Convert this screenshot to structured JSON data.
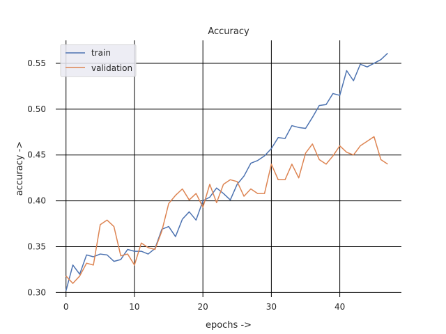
{
  "chart_data": {
    "type": "line",
    "title": "Accuracy",
    "xlabel": "epochs ->",
    "ylabel": "accuracy ->",
    "xlim": [
      -1.5,
      49
    ],
    "ylim": [
      0.295,
      0.575
    ],
    "xticks": [
      0,
      10,
      20,
      30,
      40
    ],
    "yticks": [
      0.3,
      0.35,
      0.4,
      0.45,
      0.5,
      0.55
    ],
    "ytick_labels": [
      "0.30",
      "0.35",
      "0.40",
      "0.45",
      "0.50",
      "0.55"
    ],
    "grid": true,
    "legend_position": "upper-left",
    "x": [
      0,
      1,
      2,
      3,
      4,
      5,
      6,
      7,
      8,
      9,
      10,
      11,
      12,
      13,
      14,
      15,
      16,
      17,
      18,
      19,
      20,
      21,
      22,
      23,
      24,
      25,
      26,
      27,
      28,
      29,
      30,
      31,
      32,
      33,
      34,
      35,
      36,
      37,
      38,
      39,
      40,
      41,
      42,
      43,
      44,
      45,
      46,
      47
    ],
    "series": [
      {
        "name": "train",
        "color": "#4c72b0",
        "values": [
          0.302,
          0.33,
          0.32,
          0.341,
          0.339,
          0.342,
          0.341,
          0.334,
          0.336,
          0.347,
          0.345,
          0.345,
          0.342,
          0.348,
          0.369,
          0.372,
          0.361,
          0.38,
          0.388,
          0.379,
          0.4,
          0.404,
          0.414,
          0.408,
          0.401,
          0.418,
          0.427,
          0.441,
          0.444,
          0.449,
          0.457,
          0.469,
          0.468,
          0.482,
          0.48,
          0.479,
          0.491,
          0.504,
          0.505,
          0.517,
          0.515,
          0.542,
          0.531,
          0.549,
          0.546,
          0.55,
          0.554,
          0.561
        ]
      },
      {
        "name": "validation",
        "color": "#dd8452",
        "values": [
          0.318,
          0.31,
          0.318,
          0.332,
          0.33,
          0.374,
          0.379,
          0.372,
          0.34,
          0.342,
          0.33,
          0.354,
          0.349,
          0.347,
          0.367,
          0.397,
          0.406,
          0.413,
          0.401,
          0.408,
          0.393,
          0.418,
          0.398,
          0.418,
          0.423,
          0.421,
          0.405,
          0.413,
          0.408,
          0.408,
          0.44,
          0.423,
          0.423,
          0.44,
          0.425,
          0.452,
          0.462,
          0.445,
          0.44,
          0.449,
          0.46,
          0.453,
          0.45,
          0.46,
          0.465,
          0.47,
          0.445,
          0.44
        ]
      }
    ]
  }
}
